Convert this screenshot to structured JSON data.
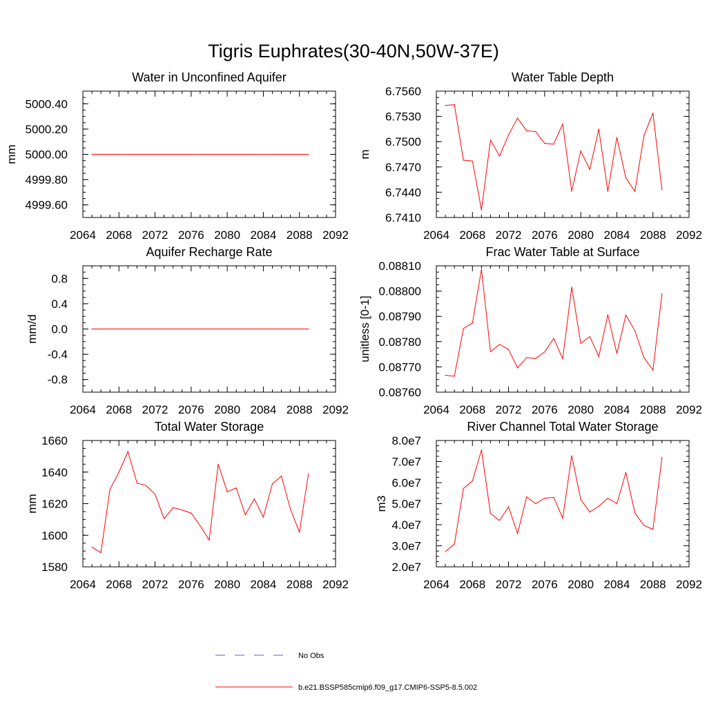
{
  "page": {
    "title": "Tigris Euphrates(30-40N,50W-37E)"
  },
  "colors": {
    "series": "#ff0000",
    "obs": "#5a5ad6",
    "axis": "#000000"
  },
  "legend": {
    "obs_label": "No Obs",
    "series_label": "b.e21.BSSP585cmip6.f09_g17.CMIP6-SSP5-8.5.002"
  },
  "chart_data": [
    {
      "type": "line",
      "title": "Water in Unconfined Aquifer",
      "ylabel": "mm",
      "xlim": [
        2064,
        2092
      ],
      "ylim": [
        4999.5,
        5000.5
      ],
      "xticks": [
        "2064",
        "2068",
        "2072",
        "2076",
        "2080",
        "2084",
        "2088",
        "2092"
      ],
      "yticks": [
        {
          "v": 4999.6,
          "label": "4999.60"
        },
        {
          "v": 4999.8,
          "label": "4999.80"
        },
        {
          "v": 5000.0,
          "label": "5000.00"
        },
        {
          "v": 5000.2,
          "label": "5000.20"
        },
        {
          "v": 5000.4,
          "label": "5000.40"
        }
      ],
      "x": [
        2065,
        2066,
        2067,
        2068,
        2069,
        2070,
        2071,
        2072,
        2073,
        2074,
        2075,
        2076,
        2077,
        2078,
        2079,
        2080,
        2081,
        2082,
        2083,
        2084,
        2085,
        2086,
        2087,
        2088,
        2089
      ],
      "values": [
        5000,
        5000,
        5000,
        5000,
        5000,
        5000,
        5000,
        5000,
        5000,
        5000,
        5000,
        5000,
        5000,
        5000,
        5000,
        5000,
        5000,
        5000,
        5000,
        5000,
        5000,
        5000,
        5000,
        5000,
        5000
      ]
    },
    {
      "type": "line",
      "title": "Water Table Depth",
      "ylabel": "m",
      "xlim": [
        2064,
        2092
      ],
      "ylim": [
        6.741,
        6.756
      ],
      "xticks": [
        "2064",
        "2068",
        "2072",
        "2076",
        "2080",
        "2084",
        "2088",
        "2092"
      ],
      "yticks": [
        {
          "v": 6.741,
          "label": "6.7410"
        },
        {
          "v": 6.744,
          "label": "6.7440"
        },
        {
          "v": 6.747,
          "label": "6.7470"
        },
        {
          "v": 6.75,
          "label": "6.7500"
        },
        {
          "v": 6.753,
          "label": "6.7530"
        },
        {
          "v": 6.756,
          "label": "6.7560"
        }
      ],
      "x": [
        2065,
        2066,
        2067,
        2068,
        2069,
        2070,
        2071,
        2072,
        2073,
        2074,
        2075,
        2076,
        2077,
        2078,
        2079,
        2080,
        2081,
        2082,
        2083,
        2084,
        2085,
        2086,
        2087,
        2088,
        2089
      ],
      "values": [
        6.7543,
        6.7544,
        6.7478,
        6.7477,
        6.7419,
        6.7502,
        6.7483,
        6.7508,
        6.7528,
        6.7513,
        6.7512,
        6.7498,
        6.7497,
        6.7521,
        6.7441,
        6.7489,
        6.7467,
        6.7515,
        6.7441,
        6.7505,
        6.7457,
        6.7441,
        6.7507,
        6.7534,
        6.7443
      ]
    },
    {
      "type": "line",
      "title": "Aquifer Recharge Rate",
      "ylabel": "mm/d",
      "xlim": [
        2064,
        2092
      ],
      "ylim": [
        -1.0,
        1.0
      ],
      "xticks": [
        "2064",
        "2068",
        "2072",
        "2076",
        "2080",
        "2084",
        "2088",
        "2092"
      ],
      "yticks": [
        {
          "v": -0.8,
          "label": "-0.8"
        },
        {
          "v": -0.4,
          "label": "-0.4"
        },
        {
          "v": 0.0,
          "label": "0.0"
        },
        {
          "v": 0.4,
          "label": "0.4"
        },
        {
          "v": 0.8,
          "label": "0.8"
        }
      ],
      "x": [
        2065,
        2066,
        2067,
        2068,
        2069,
        2070,
        2071,
        2072,
        2073,
        2074,
        2075,
        2076,
        2077,
        2078,
        2079,
        2080,
        2081,
        2082,
        2083,
        2084,
        2085,
        2086,
        2087,
        2088,
        2089
      ],
      "values": [
        0,
        0,
        0,
        0,
        0,
        0,
        0,
        0,
        0,
        0,
        0,
        0,
        0,
        0,
        0,
        0,
        0,
        0,
        0,
        0,
        0,
        0,
        0,
        0,
        0
      ]
    },
    {
      "type": "line",
      "title": "Frac Water Table at Surface",
      "ylabel": "unitless [0-1]",
      "xlim": [
        2064,
        2092
      ],
      "ylim": [
        0.0876,
        0.0881
      ],
      "xticks": [
        "2064",
        "2068",
        "2072",
        "2076",
        "2080",
        "2084",
        "2088",
        "2092"
      ],
      "yticks": [
        {
          "v": 0.0876,
          "label": "0.08760"
        },
        {
          "v": 0.0877,
          "label": "0.08770"
        },
        {
          "v": 0.0878,
          "label": "0.08780"
        },
        {
          "v": 0.0879,
          "label": "0.08790"
        },
        {
          "v": 0.088,
          "label": "0.08800"
        },
        {
          "v": 0.0881,
          "label": "0.08810"
        }
      ],
      "x": [
        2065,
        2066,
        2067,
        2068,
        2069,
        2070,
        2071,
        2072,
        2073,
        2074,
        2075,
        2076,
        2077,
        2078,
        2079,
        2080,
        2081,
        2082,
        2083,
        2084,
        2085,
        2086,
        2087,
        2088,
        2089
      ],
      "values": [
        0.087667,
        0.087663,
        0.087852,
        0.087874,
        0.088086,
        0.08776,
        0.087789,
        0.087769,
        0.087696,
        0.087737,
        0.087733,
        0.087759,
        0.087813,
        0.087732,
        0.088016,
        0.087793,
        0.08782,
        0.087741,
        0.087906,
        0.087753,
        0.087905,
        0.087843,
        0.087737,
        0.087687,
        0.08799
      ]
    },
    {
      "type": "line",
      "title": "Total Water Storage",
      "ylabel": "mm",
      "xlim": [
        2064,
        2092
      ],
      "ylim": [
        1580,
        1660
      ],
      "xticks": [
        "2064",
        "2068",
        "2072",
        "2076",
        "2080",
        "2084",
        "2088",
        "2092"
      ],
      "yticks": [
        {
          "v": 1580,
          "label": "1580"
        },
        {
          "v": 1600,
          "label": "1600"
        },
        {
          "v": 1620,
          "label": "1620"
        },
        {
          "v": 1640,
          "label": "1640"
        },
        {
          "v": 1660,
          "label": "1660"
        }
      ],
      "x": [
        2065,
        2066,
        2067,
        2068,
        2069,
        2070,
        2071,
        2072,
        2073,
        2074,
        2075,
        2076,
        2077,
        2078,
        2079,
        2080,
        2081,
        2082,
        2083,
        2084,
        2085,
        2086,
        2087,
        2088,
        2089
      ],
      "values": [
        1592.5,
        1589,
        1629,
        1640,
        1653,
        1633,
        1631.5,
        1626,
        1610.5,
        1617.5,
        1616,
        1614,
        1606,
        1597,
        1645,
        1627.5,
        1630,
        1613,
        1623,
        1611.5,
        1632.5,
        1637.5,
        1616.5,
        1602,
        1639
      ]
    },
    {
      "type": "line",
      "title": "River Channel Total Water Storage",
      "ylabel": "m3",
      "xlim": [
        2064,
        2092
      ],
      "ylim": [
        20000000,
        80000000
      ],
      "xticks": [
        "2064",
        "2068",
        "2072",
        "2076",
        "2080",
        "2084",
        "2088",
        "2092"
      ],
      "yticks": [
        {
          "v": 20000000,
          "label": "2.0e7"
        },
        {
          "v": 30000000,
          "label": "3.0e7"
        },
        {
          "v": 40000000,
          "label": "4.0e7"
        },
        {
          "v": 50000000,
          "label": "5.0e7"
        },
        {
          "v": 60000000,
          "label": "6.0e7"
        },
        {
          "v": 70000000,
          "label": "7.0e7"
        },
        {
          "v": 80000000,
          "label": "8.0e7"
        }
      ],
      "x": [
        2065,
        2066,
        2067,
        2068,
        2069,
        2070,
        2071,
        2072,
        2073,
        2074,
        2075,
        2076,
        2077,
        2078,
        2079,
        2080,
        2081,
        2082,
        2083,
        2084,
        2085,
        2086,
        2087,
        2088,
        2089
      ],
      "values": [
        27200000,
        30800000,
        57200000,
        60800000,
        75500000,
        45300000,
        42000000,
        48500000,
        35800000,
        53200000,
        50000000,
        52600000,
        53000000,
        43100000,
        72800000,
        52000000,
        46000000,
        48800000,
        52600000,
        50000000,
        64800000,
        45600000,
        39700000,
        37800000,
        72000000
      ]
    }
  ]
}
